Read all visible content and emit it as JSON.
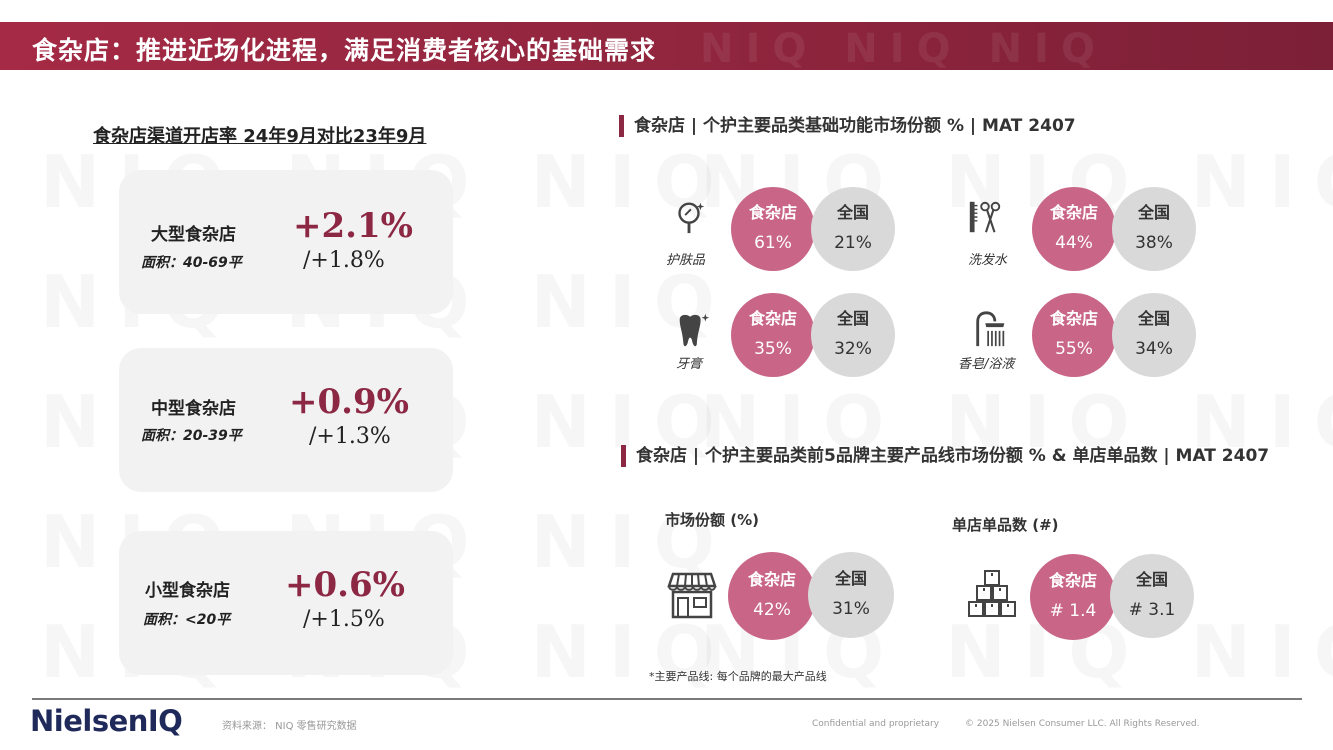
{
  "header": {
    "title": "食杂店：推进近场化进程，满足消费者核心的基础需求",
    "watermark": "NIQ NIQ NIQ"
  },
  "left": {
    "heading": "食杂店渠道开店率 24年9月对比23年9月",
    "stores": [
      {
        "name": "大型食杂店",
        "area": "面积：40-69平",
        "rate": "+2.1%",
        "base": "/+1.8%"
      },
      {
        "name": "中型食杂店",
        "area": "面积：20-39平",
        "rate": "+0.9%",
        "base": "/+1.3%"
      },
      {
        "name": "小型食杂店",
        "area": "面积：<20平",
        "rate": "+0.6%",
        "base": "/+1.5%"
      }
    ]
  },
  "right_top": {
    "heading": "食杂店 | 个护主要品类基础功能市场份额 % | MAT 2407",
    "categories": [
      {
        "label": "护肤品",
        "icon": "mirror-icon",
        "store_label": "食杂店",
        "store_value": "61%",
        "national_label": "全国",
        "national_value": "21%"
      },
      {
        "label": "洗发水",
        "icon": "comb-scissors-icon",
        "store_label": "食杂店",
        "store_value": "44%",
        "national_label": "全国",
        "national_value": "38%"
      },
      {
        "label": "牙膏",
        "icon": "tooth-icon",
        "store_label": "食杂店",
        "store_value": "35%",
        "national_label": "全国",
        "national_value": "32%"
      },
      {
        "label": "香皂/浴液",
        "icon": "shower-icon",
        "store_label": "食杂店",
        "store_value": "55%",
        "national_label": "全国",
        "national_value": "34%"
      }
    ]
  },
  "right_bottom": {
    "heading": "食杂店 | 个护主要品类前5品牌主要产品线市场份额 % & 单店单品数 | MAT 2407",
    "metrics": [
      {
        "label": "市场份额 (%)",
        "icon": "storefront-icon",
        "store_label": "食杂店",
        "store_value": "42%",
        "national_label": "全国",
        "national_value": "31%"
      },
      {
        "label": "单店单品数 (#)",
        "icon": "boxes-icon",
        "store_label": "食杂店",
        "store_value": "# 1.4",
        "national_label": "全国",
        "national_value": "# 3.1"
      }
    ],
    "footnote": "*主要产品线:   每个品牌的最大产品线"
  },
  "footer": {
    "logo": "NielsenIQ",
    "source": "资料来源： NIQ 零售研究数据",
    "confidential": "Confidential and proprietary",
    "copyright": "© 2025 Nielsen Consumer LLC. All Rights Reserved."
  },
  "colors": {
    "banner": "#93263f",
    "accent": "#8c2744",
    "store_circle": "#c96586",
    "national_circle": "#d9d9d9",
    "card_bg": "#f2f2f2"
  }
}
